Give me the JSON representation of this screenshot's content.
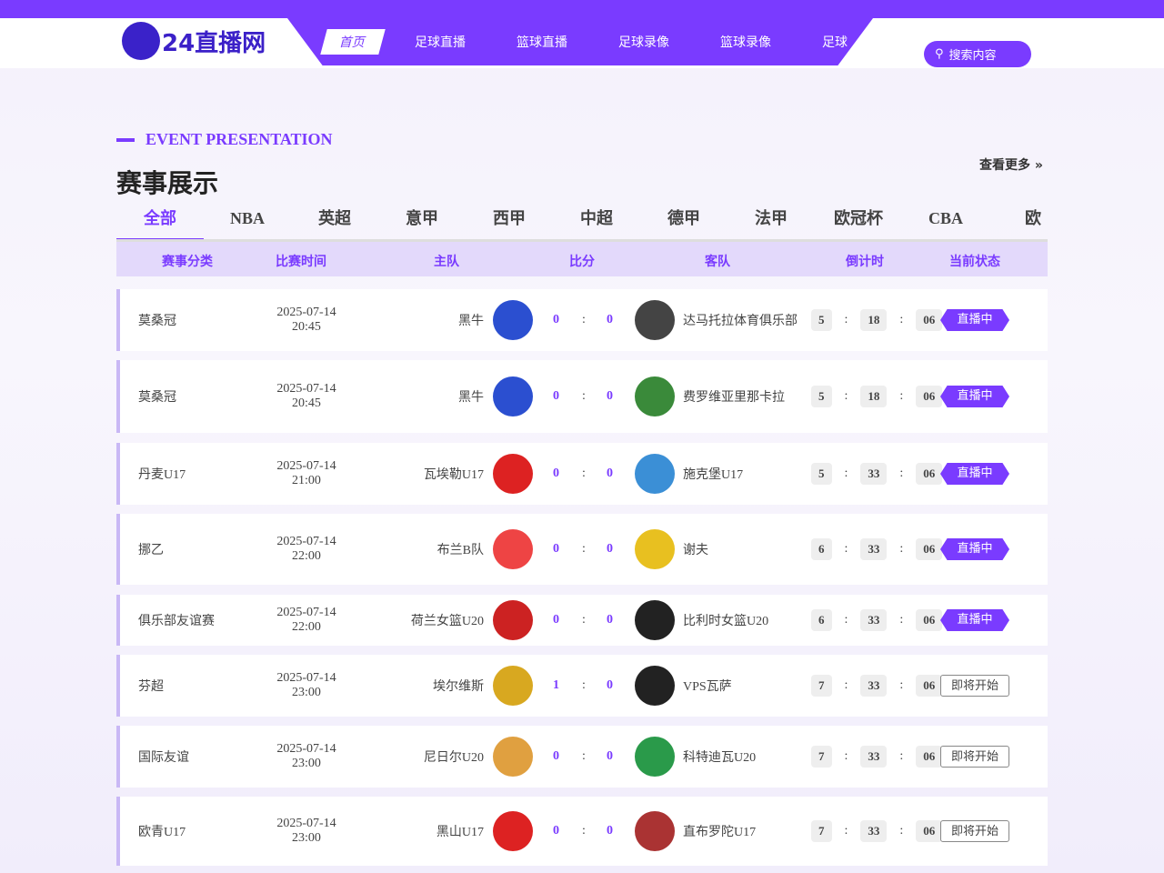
{
  "header": {
    "logo": "24直播网",
    "nav": [
      "首页",
      "足球直播",
      "篮球直播",
      "足球录像",
      "篮球录像",
      "足球"
    ],
    "search_placeholder": "搜索内容"
  },
  "section": {
    "subtitle": "EVENT PRESENTATION",
    "title": "赛事展示",
    "more": "查看更多 »"
  },
  "tabs": [
    "全部",
    "NBA",
    "英超",
    "意甲",
    "西甲",
    "中超",
    "德甲",
    "法甲",
    "欧冠杯",
    "CBA",
    "欧"
  ],
  "columns": [
    "赛事分类",
    "比赛时间",
    "主队",
    "比分",
    "客队",
    "倒计时",
    "当前状态"
  ],
  "colors": {
    "accent": "#7a3bff"
  },
  "matches": [
    {
      "cat": "莫桑冠",
      "date": "2025-07-14",
      "time": "20:45",
      "home": "黑牛",
      "hs": "0",
      "as": "0",
      "away": "达马托拉体育俱乐部",
      "cd": [
        "5",
        "18",
        "06"
      ],
      "status": "直播中",
      "live": true
    },
    {
      "cat": "莫桑冠",
      "date": "2025-07-14",
      "time": "20:45",
      "home": "黑牛",
      "hs": "0",
      "as": "0",
      "away": "费罗维亚里那卡拉",
      "cd": [
        "5",
        "18",
        "06"
      ],
      "status": "直播中",
      "live": true
    },
    {
      "cat": "丹麦U17",
      "date": "2025-07-14",
      "time": "21:00",
      "home": "瓦埃勒U17",
      "hs": "0",
      "as": "0",
      "away": "施克堡U17",
      "cd": [
        "5",
        "33",
        "06"
      ],
      "status": "直播中",
      "live": true
    },
    {
      "cat": "挪乙",
      "date": "2025-07-14",
      "time": "22:00",
      "home": "布兰B队",
      "hs": "0",
      "as": "0",
      "away": "谢夫",
      "cd": [
        "6",
        "33",
        "06"
      ],
      "status": "直播中",
      "live": true
    },
    {
      "cat": "俱乐部友谊赛",
      "date": "2025-07-14",
      "time": "22:00",
      "home": "荷兰女篮U20",
      "hs": "0",
      "as": "0",
      "away": "比利时女篮U20",
      "cd": [
        "6",
        "33",
        "06"
      ],
      "status": "直播中",
      "live": true
    },
    {
      "cat": "芬超",
      "date": "2025-07-14",
      "time": "23:00",
      "home": "埃尔维斯",
      "hs": "1",
      "as": "0",
      "away": "VPS瓦萨",
      "cd": [
        "7",
        "33",
        "06"
      ],
      "status": "即将开始",
      "live": false
    },
    {
      "cat": "国际友谊",
      "date": "2025-07-14",
      "time": "23:00",
      "home": "尼日尔U20",
      "hs": "0",
      "as": "0",
      "away": "科特迪瓦U20",
      "cd": [
        "7",
        "33",
        "06"
      ],
      "status": "即将开始",
      "live": false
    },
    {
      "cat": "欧青U17",
      "date": "2025-07-14",
      "time": "23:00",
      "home": "黑山U17",
      "hs": "0",
      "as": "0",
      "away": "直布罗陀U17",
      "cd": [
        "7",
        "33",
        "06"
      ],
      "status": "即将开始",
      "live": false
    }
  ]
}
